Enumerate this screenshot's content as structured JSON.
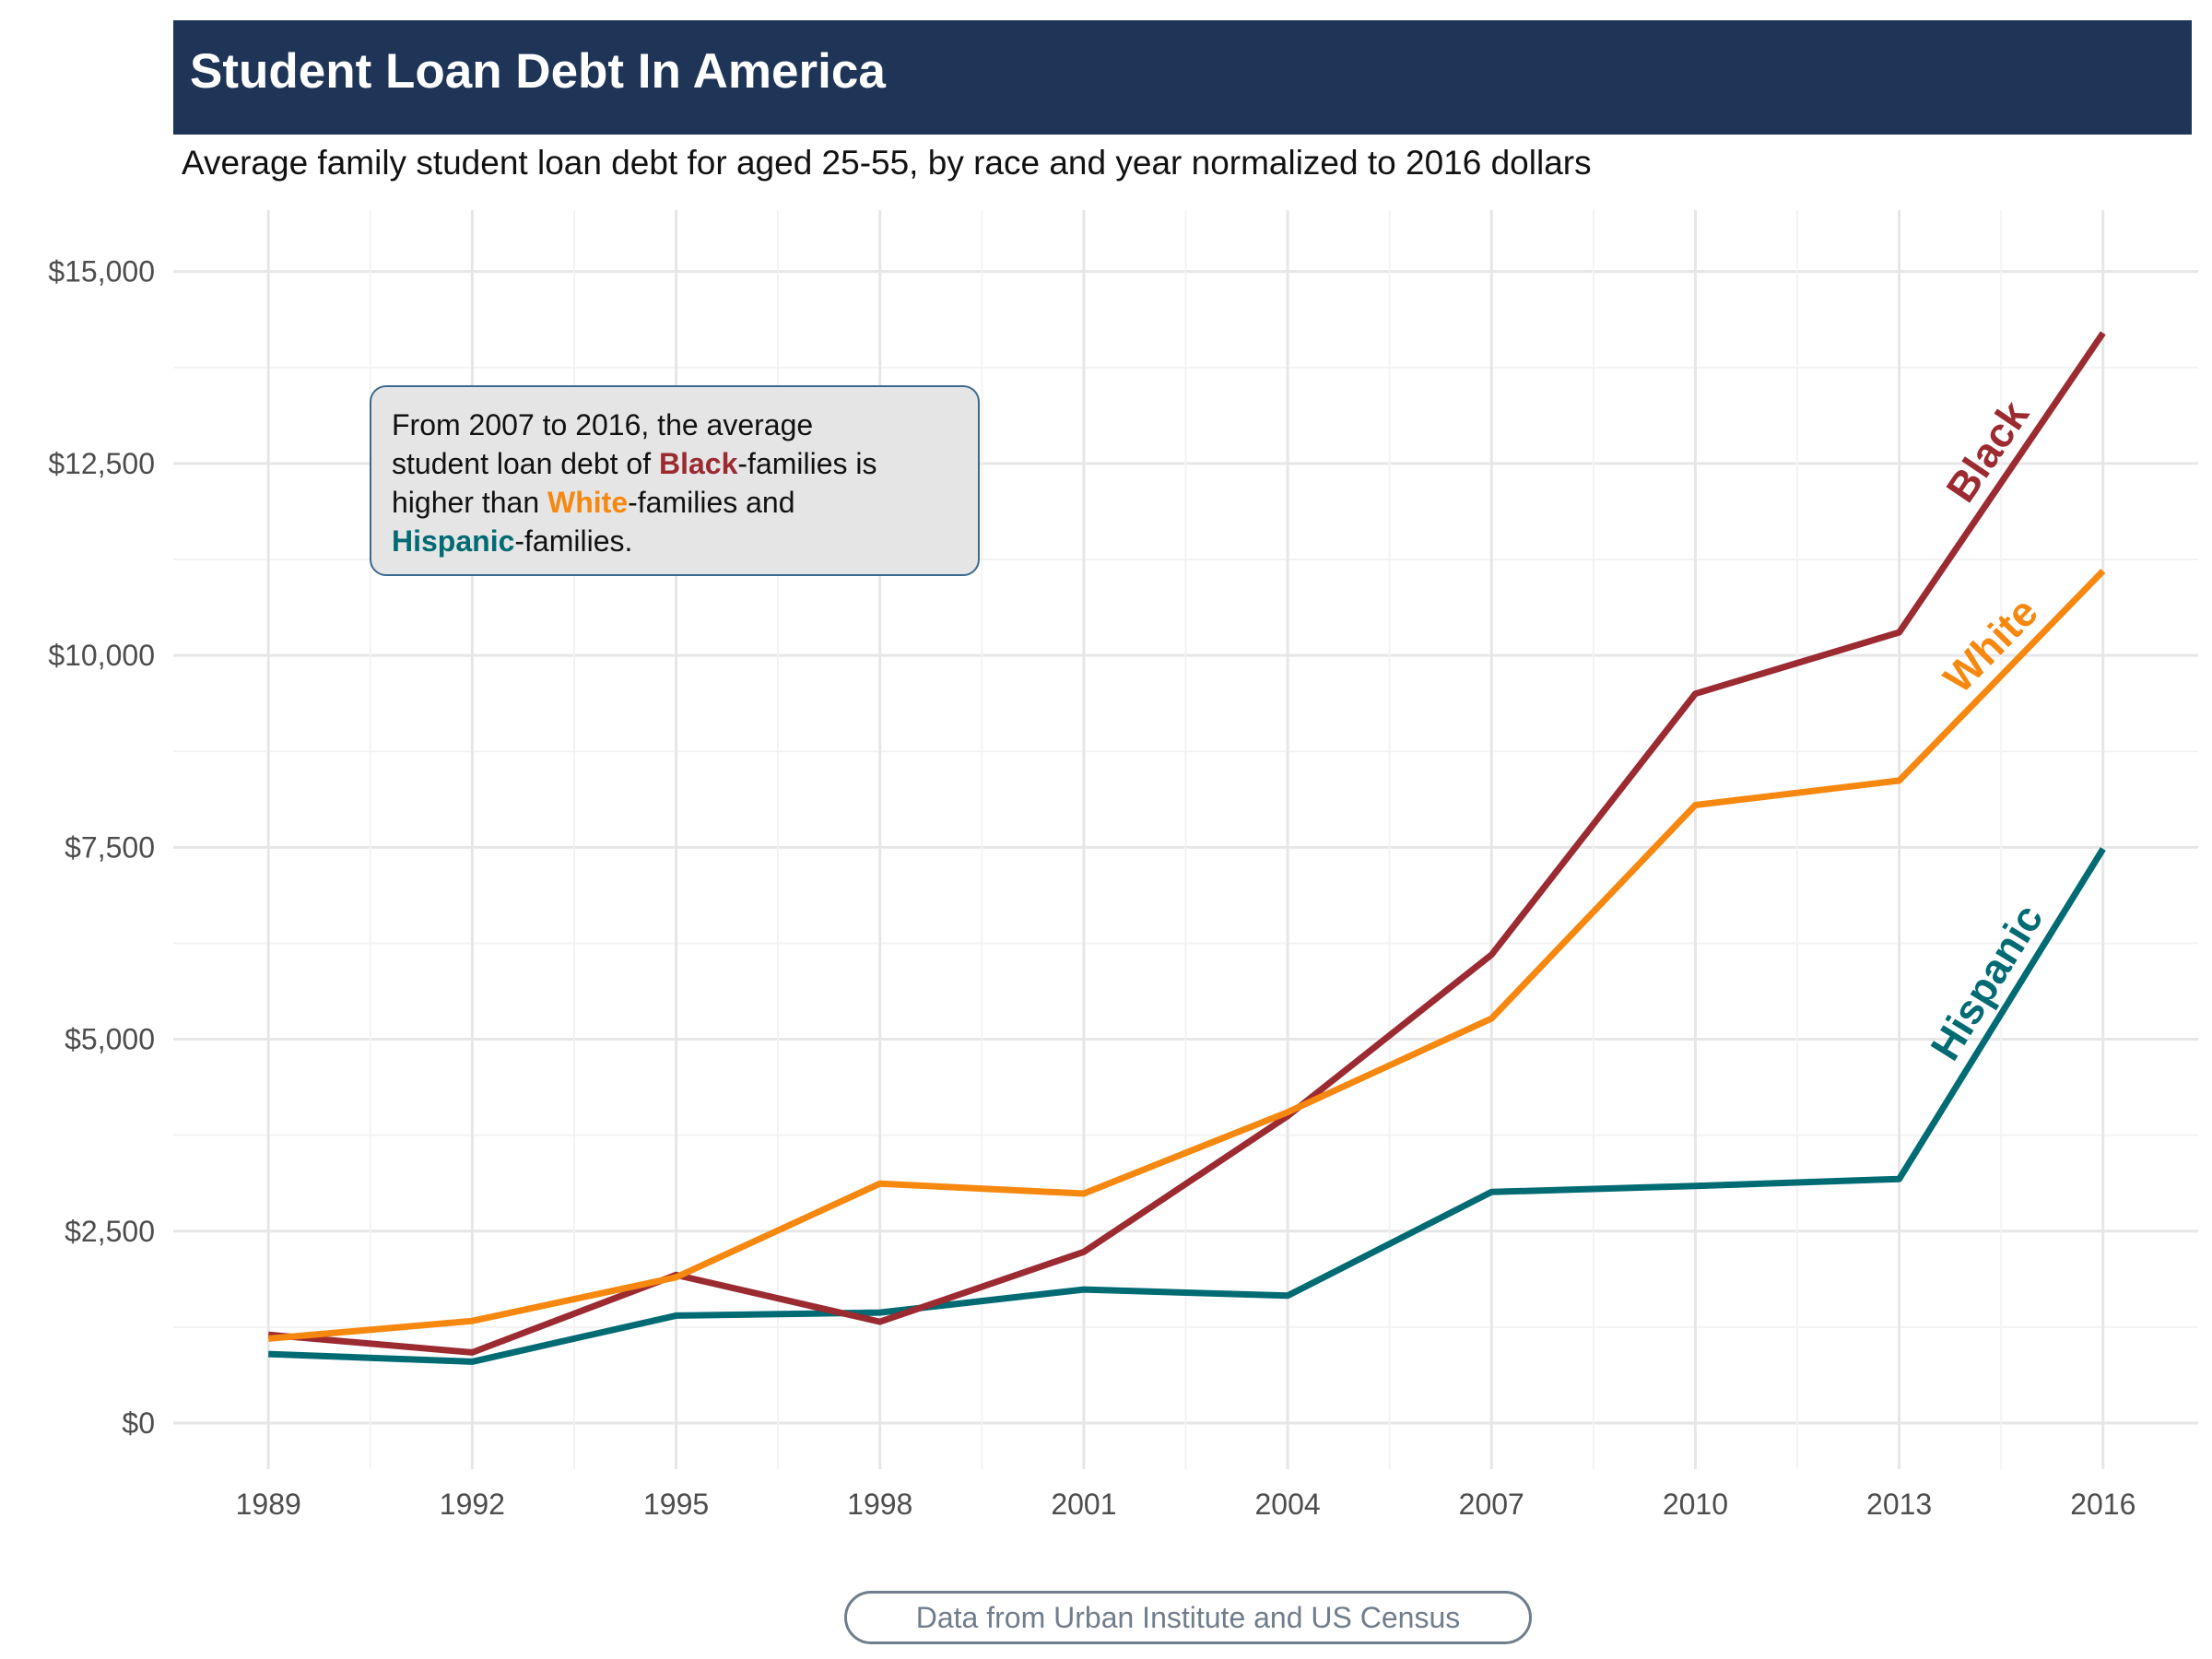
{
  "title": "Student Loan Debt In America",
  "subtitle": "Average family student loan debt for aged 25-55, by race and year normalized to 2016 dollars",
  "annotation": {
    "line1": "From 2007 to 2016, the average",
    "line2_pre": "student loan debt of ",
    "line2_hl": "Black",
    "line2_post": "-families is",
    "line3_pre": "higher than ",
    "line3_hl": "White",
    "line3_post": "-families and",
    "line4_hl": "Hispanic",
    "line4_post": "-families."
  },
  "caption": "Data from Urban Institute and US Census",
  "colors": {
    "black_series": "#9b2a31",
    "white_series": "#f6870f",
    "hispanic_series": "#006b73",
    "title_bar": "#1f3558",
    "grid": "#e6e6e6"
  },
  "chart_data": {
    "type": "line",
    "title": "Student Loan Debt In America",
    "subtitle": "Average family student loan debt for aged 25-55, by race and year normalized to 2016 dollars",
    "x": [
      1989,
      1992,
      1995,
      1998,
      2001,
      2004,
      2007,
      2010,
      2013,
      2016
    ],
    "x_tick_labels": [
      "1989",
      "1992",
      "1995",
      "1998",
      "2001",
      "2004",
      "2007",
      "2010",
      "2013",
      "2016"
    ],
    "y_ticks": [
      0,
      2500,
      5000,
      7500,
      10000,
      12500,
      15000
    ],
    "y_tick_labels": [
      "$0",
      "$2,500",
      "$5,000",
      "$7,500",
      "$10,000",
      "$12,500",
      "$15,000"
    ],
    "xlabel": "",
    "ylabel": "",
    "ylim": [
      -600,
      15800
    ],
    "xlim": [
      1987.6,
      2017.4
    ],
    "grid": true,
    "legend": "direct labels at line ends",
    "series": [
      {
        "name": "Black",
        "color": "#9b2a31",
        "values": [
          1150,
          920,
          1930,
          1320,
          2230,
          4000,
          6100,
          9500,
          10300,
          14200
        ]
      },
      {
        "name": "White",
        "color": "#f6870f",
        "values": [
          1100,
          1330,
          1900,
          3120,
          2990,
          4050,
          5270,
          8050,
          8370,
          11100
        ]
      },
      {
        "name": "Hispanic",
        "color": "#006b73",
        "values": [
          900,
          800,
          1400,
          1440,
          1740,
          1660,
          3010,
          3090,
          3180,
          7480
        ]
      }
    ]
  }
}
